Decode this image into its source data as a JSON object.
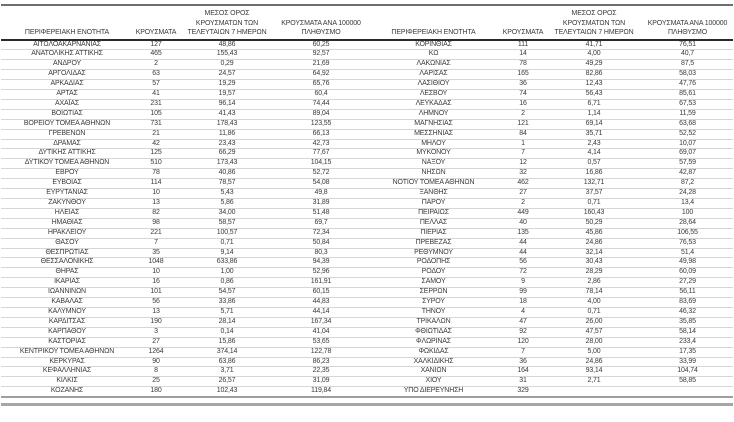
{
  "page": {
    "background": "#ffffff",
    "text_color": "#3a3a3a"
  },
  "colors": {
    "top_rule": "#6e6e6e",
    "header_rule": "#2b2b2b",
    "row_rule": "#d6d6d6",
    "bottom_rule": "#a6a6a6"
  },
  "table": {
    "headers": {
      "region": "ΠΕΡΙΦΕΡΕΙΑΚΗ ΕΝΟΤΗΤΑ",
      "cases": "ΚΡΟΥΣΜΑΤΑ",
      "avg7_line1": "ΜΕΣΟΣ ΟΡΟΣ",
      "avg7_line2": "ΚΡΟΥΣΜΑΤΩΝ ΤΩΝ",
      "avg7_line3": "ΤΕΛΕΥΤΑΙΩΝ 7 ΗΜΕΡΩΝ",
      "per100k_line1": "ΚΡΟΥΣΜΑΤΑ ΑΝΑ 100000",
      "per100k_line2": "ΠΛΗΘΥΣΜΟ"
    },
    "columns": [
      "region",
      "cases",
      "avg_7day",
      "per_100k"
    ],
    "left_rows": [
      [
        "ΑΙΤΩΛΟΑΚΑΡΝΑΝΙΑΣ",
        "127",
        "48,86",
        "60,25"
      ],
      [
        "ΑΝΑΤΟΛΙΚΗΣ ΑΤΤΙΚΗΣ",
        "465",
        "155,43",
        "92,57"
      ],
      [
        "ΑΝΔΡΟΥ",
        "2",
        "0,29",
        "21,69"
      ],
      [
        "ΑΡΓΟΛΙΔΑΣ",
        "63",
        "24,57",
        "64,92"
      ],
      [
        "ΑΡΚΑΔΙΑΣ",
        "57",
        "19,29",
        "65,76"
      ],
      [
        "ΑΡΤΑΣ",
        "41",
        "19,57",
        "60,4"
      ],
      [
        "ΑΧΑΪΑΣ",
        "231",
        "96,14",
        "74,44"
      ],
      [
        "ΒΟΙΩΤΙΑΣ",
        "105",
        "41,43",
        "89,04"
      ],
      [
        "ΒΟΡΕΙΟΥ ΤΟΜΕΑ ΑΘΗΝΩΝ",
        "731",
        "178,43",
        "123,55"
      ],
      [
        "ΓΡΕΒΕΝΩΝ",
        "21",
        "11,86",
        "66,13"
      ],
      [
        "ΔΡΑΜΑΣ",
        "42",
        "23,43",
        "42,73"
      ],
      [
        "ΔΥΤΙΚΗΣ ΑΤΤΙΚΗΣ",
        "125",
        "66,29",
        "77,67"
      ],
      [
        "ΔΥΤΙΚΟΥ ΤΟΜΕΑ ΑΘΗΝΩΝ",
        "510",
        "173,43",
        "104,15"
      ],
      [
        "ΕΒΡΟΥ",
        "78",
        "40,86",
        "52,72"
      ],
      [
        "ΕΥΒΟΙΑΣ",
        "114",
        "78,57",
        "54,08"
      ],
      [
        "ΕΥΡΥΤΑΝΙΑΣ",
        "10",
        "5,43",
        "49,8"
      ],
      [
        "ΖΑΚΥΝΘΟΥ",
        "13",
        "5,86",
        "31,89"
      ],
      [
        "ΗΛΕΙΑΣ",
        "82",
        "34,00",
        "51,48"
      ],
      [
        "ΗΜΑΘΙΑΣ",
        "98",
        "58,57",
        "69,7"
      ],
      [
        "ΗΡΑΚΛΕΙΟΥ",
        "221",
        "100,57",
        "72,34"
      ],
      [
        "ΘΑΣΟΥ",
        "7",
        "0,71",
        "50,84"
      ],
      [
        "ΘΕΣΠΡΩΤΙΑΣ",
        "35",
        "9,14",
        "80,3"
      ],
      [
        "ΘΕΣΣΑΛΟΝΙΚΗΣ",
        "1048",
        "633,86",
        "94,39"
      ],
      [
        "ΘΗΡΑΣ",
        "10",
        "1,00",
        "52,96"
      ],
      [
        "ΙΚΑΡΙΑΣ",
        "16",
        "0,86",
        "161,91"
      ],
      [
        "ΙΩΑΝΝΙΝΩΝ",
        "101",
        "54,57",
        "60,15"
      ],
      [
        "ΚΑΒΑΛΑΣ",
        "56",
        "33,86",
        "44,83"
      ],
      [
        "ΚΑΛΥΜΝΟΥ",
        "13",
        "5,71",
        "44,14"
      ],
      [
        "ΚΑΡΔΙΤΣΑΣ",
        "190",
        "28,14",
        "167,34"
      ],
      [
        "ΚΑΡΠΑΘΟΥ",
        "3",
        "0,14",
        "41,04"
      ],
      [
        "ΚΑΣΤΟΡΙΑΣ",
        "27",
        "15,86",
        "53,65"
      ],
      [
        "ΚΕΝΤΡΙΚΟΥ ΤΟΜΕΑ ΑΘΗΝΩΝ",
        "1264",
        "374,14",
        "122,78"
      ],
      [
        "ΚΕΡΚΥΡΑΣ",
        "90",
        "63,86",
        "86,23"
      ],
      [
        "ΚΕΦΑΛΛΗΝΙΑΣ",
        "8",
        "3,71",
        "22,35"
      ],
      [
        "ΚΙΛΚΙΣ",
        "25",
        "26,57",
        "31,09"
      ],
      [
        "ΚΟΖΑΝΗΣ",
        "180",
        "102,43",
        "119,84"
      ]
    ],
    "right_rows": [
      [
        "ΚΟΡΙΝΘΙΑΣ",
        "111",
        "41,71",
        "76,51"
      ],
      [
        "ΚΩ",
        "14",
        "4,00",
        "40,7"
      ],
      [
        "ΛΑΚΩΝΙΑΣ",
        "78",
        "49,29",
        "87,5"
      ],
      [
        "ΛΑΡΙΣΑΣ",
        "165",
        "82,86",
        "58,03"
      ],
      [
        "ΛΑΣΙΘΙΟΥ",
        "36",
        "12,43",
        "47,76"
      ],
      [
        "ΛΕΣΒΟΥ",
        "74",
        "56,43",
        "85,61"
      ],
      [
        "ΛΕΥΚΑΔΑΣ",
        "16",
        "6,71",
        "67,53"
      ],
      [
        "ΛΗΜΝΟΥ",
        "2",
        "1,14",
        "11,59"
      ],
      [
        "ΜΑΓΝΗΣΙΑΣ",
        "121",
        "69,14",
        "63,68"
      ],
      [
        "ΜΕΣΣΗΝΙΑΣ",
        "84",
        "35,71",
        "52,52"
      ],
      [
        "ΜΗΛΟΥ",
        "1",
        "2,43",
        "10,07"
      ],
      [
        "ΜΥΚΟΝΟΥ",
        "7",
        "4,14",
        "69,07"
      ],
      [
        "ΝΑΞΟΥ",
        "12",
        "0,57",
        "57,59"
      ],
      [
        "ΝΗΣΩΝ",
        "32",
        "16,86",
        "42,87"
      ],
      [
        "ΝΟΤΙΟΥ ΤΟΜΕΑ ΑΘΗΝΩΝ",
        "462",
        "132,71",
        "87,2"
      ],
      [
        "ΞΑΝΘΗΣ",
        "27",
        "37,57",
        "24,28"
      ],
      [
        "ΠΑΡΟΥ",
        "2",
        "0,71",
        "13,4"
      ],
      [
        "ΠΕΙΡΑΙΩΣ",
        "449",
        "160,43",
        "100"
      ],
      [
        "ΠΕΛΛΑΣ",
        "40",
        "50,29",
        "28,64"
      ],
      [
        "ΠΙΕΡΙΑΣ",
        "135",
        "45,86",
        "106,55"
      ],
      [
        "ΠΡΕΒΕΖΑΣ",
        "44",
        "24,86",
        "76,53"
      ],
      [
        "ΡΕΘΥΜΝΟΥ",
        "44",
        "32,14",
        "51,4"
      ],
      [
        "ΡΟΔΟΠΗΣ",
        "56",
        "30,43",
        "49,98"
      ],
      [
        "ΡΟΔΟΥ",
        "72",
        "28,29",
        "60,09"
      ],
      [
        "ΣΑΜΟΥ",
        "9",
        "2,86",
        "27,29"
      ],
      [
        "ΣΕΡΡΩΝ",
        "99",
        "78,14",
        "56,11"
      ],
      [
        "ΣΥΡΟΥ",
        "18",
        "4,00",
        "83,69"
      ],
      [
        "ΤΗΝΟΥ",
        "4",
        "0,71",
        "46,32"
      ],
      [
        "ΤΡΙΚΑΛΩΝ",
        "47",
        "26,00",
        "35,85"
      ],
      [
        "ΦΘΙΩΤΙΔΑΣ",
        "92",
        "47,57",
        "58,14"
      ],
      [
        "ΦΛΩΡΙΝΑΣ",
        "120",
        "28,00",
        "233,4"
      ],
      [
        "ΦΩΚΙΔΑΣ",
        "7",
        "5,00",
        "17,35"
      ],
      [
        "ΧΑΛΚΙΔΙΚΗΣ",
        "36",
        "24,86",
        "33,99"
      ],
      [
        "ΧΑΝΙΩΝ",
        "164",
        "93,14",
        "104,74"
      ],
      [
        "ΧΙΟΥ",
        "31",
        "2,71",
        "58,85"
      ],
      [
        "ΥΠΟ ΔΙΕΡΕΥΝΗΣΗ",
        "329",
        "",
        ""
      ]
    ]
  }
}
